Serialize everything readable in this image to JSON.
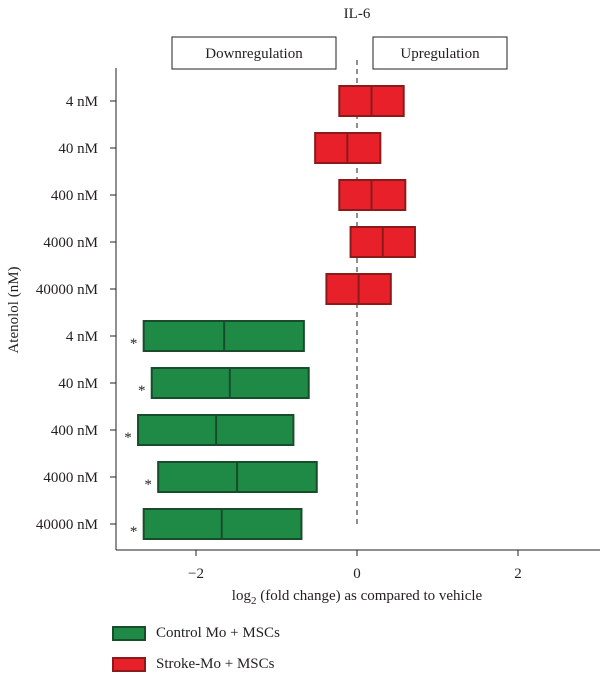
{
  "chart_data": {
    "type": "boxplot-horizontal",
    "title": "IL-6",
    "ylabel": "Atenolol (nM)",
    "xlabel_prefix": "log",
    "xlabel_subscript": "2",
    "xlabel_suffix": " (fold change) as compared to vehicle",
    "xlim": [
      -3,
      3
    ],
    "xticks": [
      -2,
      0,
      2
    ],
    "xtick_labels": [
      "−2",
      "0",
      "2"
    ],
    "reference_line": 0,
    "region_labels": {
      "left": "Downregulation",
      "right": "Upregulation"
    },
    "categories": [
      "4 nM",
      "40 nM",
      "400 nM",
      "4000 nM",
      "40000 nM",
      "4 nM",
      "40 nM",
      "400 nM",
      "4000 nM",
      "40000 nM"
    ],
    "series": [
      {
        "name": "Stroke-Mo + MSCs",
        "color": "#e8202a",
        "edge": "#8b1a1a",
        "rows": [
          0,
          1,
          2,
          3,
          4
        ],
        "boxes": [
          {
            "low": -0.22,
            "mid": 0.18,
            "high": 0.58,
            "star": ""
          },
          {
            "low": -0.52,
            "mid": -0.12,
            "high": 0.29,
            "star": ""
          },
          {
            "low": -0.22,
            "mid": 0.18,
            "high": 0.6,
            "star": ""
          },
          {
            "low": -0.08,
            "mid": 0.32,
            "high": 0.72,
            "star": ""
          },
          {
            "low": -0.38,
            "mid": 0.02,
            "high": 0.42,
            "star": ""
          }
        ]
      },
      {
        "name": "Control Mo + MSCs",
        "color": "#1e8a45",
        "edge": "#174d2b",
        "rows": [
          5,
          6,
          7,
          8,
          9
        ],
        "boxes": [
          {
            "low": -2.65,
            "mid": -1.65,
            "high": -0.66,
            "star": "*"
          },
          {
            "low": -2.55,
            "mid": -1.58,
            "high": -0.6,
            "star": "*"
          },
          {
            "low": -2.72,
            "mid": -1.75,
            "high": -0.79,
            "star": "*"
          },
          {
            "low": -2.47,
            "mid": -1.49,
            "high": -0.5,
            "star": "*"
          },
          {
            "low": -2.65,
            "mid": -1.68,
            "high": -0.69,
            "star": "*"
          }
        ]
      }
    ],
    "legend": [
      {
        "label": "Control Mo + MSCs",
        "color": "#1e8a45",
        "edge": "#174d2b"
      },
      {
        "label": "Stroke-Mo + MSCs",
        "color": "#e8202a",
        "edge": "#8b1a1a"
      }
    ]
  }
}
